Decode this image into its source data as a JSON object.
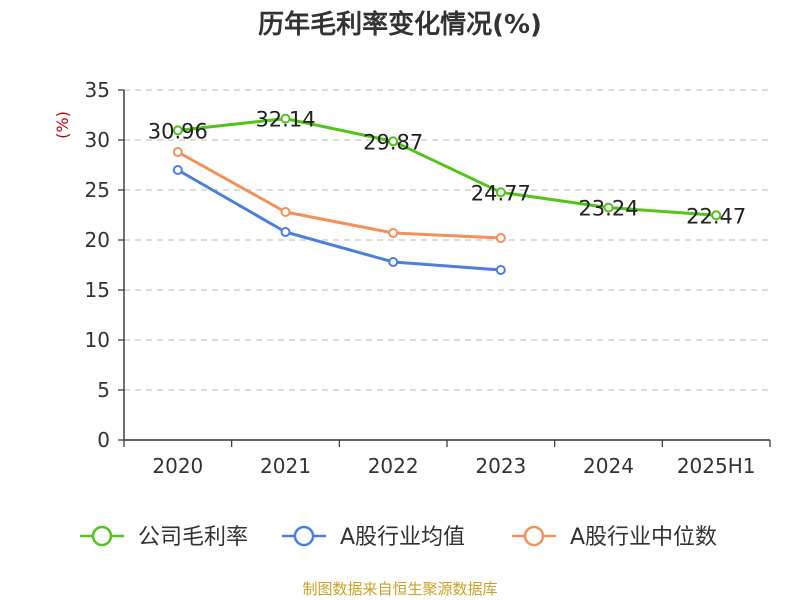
{
  "chart_data": {
    "type": "line",
    "title": "历年毛利率变化情况(%)",
    "unit_label": "(%)",
    "categories": [
      "2020",
      "2021",
      "2022",
      "2023",
      "2024",
      "2025H1"
    ],
    "ylim": [
      0,
      35
    ],
    "yticks": [
      0,
      5,
      10,
      15,
      20,
      25,
      30,
      35
    ],
    "grid": true,
    "legend_position": "bottom",
    "series": [
      {
        "name": "公司毛利率",
        "color": "#52c41a",
        "values": [
          30.96,
          32.14,
          29.87,
          24.77,
          23.24,
          22.47
        ],
        "labels": [
          "30.96",
          "32.14",
          "29.87",
          "24.77",
          "23.24",
          "22.47"
        ]
      },
      {
        "name": "A股行业均值",
        "color": "#4a7fe0",
        "values": [
          27.0,
          20.8,
          17.8,
          17.0,
          null,
          null
        ]
      },
      {
        "name": "A股行业中位数",
        "color": "#f4905a",
        "values": [
          28.8,
          22.8,
          20.7,
          20.2,
          null,
          null
        ]
      }
    ]
  },
  "source": "制图数据来自恒生聚源数据库"
}
